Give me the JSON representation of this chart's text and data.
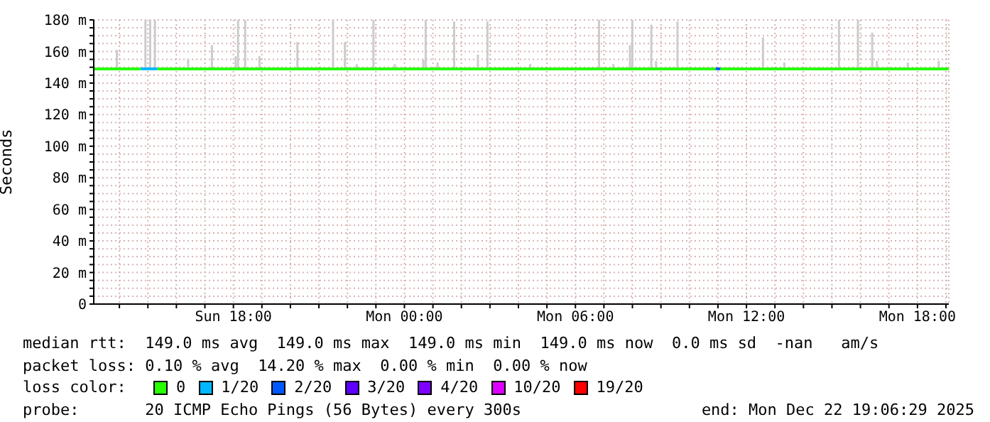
{
  "chart_data": {
    "type": "line",
    "ylabel": "Seconds",
    "legend_title": "loss color:",
    "legend": "bottom",
    "grid": true,
    "marker": "none",
    "line_style": "solid",
    "xlim": [
      "2025-12-21T13:06",
      "2025-12-22T19:06"
    ],
    "xticks": [
      {
        "value": "2025-12-21T14:00",
        "label": null
      },
      {
        "value": "2025-12-21T15:00",
        "label": null
      },
      {
        "value": "2025-12-21T16:00",
        "label": null
      },
      {
        "value": "2025-12-21T17:00",
        "label": null
      },
      {
        "value": "2025-12-21T18:00",
        "label": "Sun 18:00"
      },
      {
        "value": "2025-12-21T19:00",
        "label": null
      },
      {
        "value": "2025-12-21T20:00",
        "label": null
      },
      {
        "value": "2025-12-21T21:00",
        "label": null
      },
      {
        "value": "2025-12-21T22:00",
        "label": null
      },
      {
        "value": "2025-12-21T23:00",
        "label": null
      },
      {
        "value": "2025-12-22T00:00",
        "label": "Mon 00:00"
      },
      {
        "value": "2025-12-22T01:00",
        "label": null
      },
      {
        "value": "2025-12-22T02:00",
        "label": null
      },
      {
        "value": "2025-12-22T03:00",
        "label": null
      },
      {
        "value": "2025-12-22T04:00",
        "label": null
      },
      {
        "value": "2025-12-22T05:00",
        "label": null
      },
      {
        "value": "2025-12-22T06:00",
        "label": "Mon 06:00"
      },
      {
        "value": "2025-12-22T07:00",
        "label": null
      },
      {
        "value": "2025-12-22T08:00",
        "label": null
      },
      {
        "value": "2025-12-22T09:00",
        "label": null
      },
      {
        "value": "2025-12-22T10:00",
        "label": null
      },
      {
        "value": "2025-12-22T11:00",
        "label": null
      },
      {
        "value": "2025-12-22T12:00",
        "label": "Mon 12:00"
      },
      {
        "value": "2025-12-22T13:00",
        "label": null
      },
      {
        "value": "2025-12-22T14:00",
        "label": null
      },
      {
        "value": "2025-12-22T15:00",
        "label": null
      },
      {
        "value": "2025-12-22T16:00",
        "label": null
      },
      {
        "value": "2025-12-22T17:00",
        "label": null
      },
      {
        "value": "2025-12-22T18:00",
        "label": "Mon 18:00"
      },
      {
        "value": "2025-12-22T19:00",
        "label": null
      }
    ],
    "ylim": [
      0,
      180
    ],
    "yticks": [
      0,
      {
        "value": 5,
        "label": null
      },
      {
        "value": 10,
        "label": null
      },
      {
        "value": 15,
        "label": null
      },
      {
        "value": 20,
        "label": "20 m"
      },
      {
        "value": 25,
        "label": null
      },
      {
        "value": 30,
        "label": null
      },
      {
        "value": 35,
        "label": null
      },
      {
        "value": 40,
        "label": "40 m"
      },
      {
        "value": 45,
        "label": null
      },
      {
        "value": 50,
        "label": null
      },
      {
        "value": 55,
        "label": null
      },
      {
        "value": 60,
        "label": "60 m"
      },
      {
        "value": 65,
        "label": null
      },
      {
        "value": 70,
        "label": null
      },
      {
        "value": 75,
        "label": null
      },
      {
        "value": 80,
        "label": "80 m"
      },
      {
        "value": 85,
        "label": null
      },
      {
        "value": 90,
        "label": null
      },
      {
        "value": 95,
        "label": null
      },
      {
        "value": 100,
        "label": "100 m"
      },
      {
        "value": 105,
        "label": null
      },
      {
        "value": 110,
        "label": null
      },
      {
        "value": 115,
        "label": null
      },
      {
        "value": 120,
        "label": "120 m"
      },
      {
        "value": 125,
        "label": null
      },
      {
        "value": 130,
        "label": null
      },
      {
        "value": 135,
        "label": null
      },
      {
        "value": 140,
        "label": "140 m"
      },
      {
        "value": 145,
        "label": null
      },
      {
        "value": 150,
        "label": null
      },
      {
        "value": 155,
        "label": null
      },
      {
        "value": 160,
        "label": "160 m"
      },
      {
        "value": 165,
        "label": null
      },
      {
        "value": 170,
        "label": null
      },
      {
        "value": 175,
        "label": null
      },
      {
        "value": 180,
        "label": "180 m"
      }
    ],
    "series": [
      {
        "type": "bar",
        "color": "#cccccc",
        "x": [
          "2025-12-21T13:55",
          "2025-12-21T14:55",
          "2025-12-21T15:05",
          "2025-12-21T15:15",
          "2025-12-21T16:25",
          "2025-12-21T17:15",
          "2025-12-21T18:05",
          "2025-12-21T18:10",
          "2025-12-21T18:25",
          "2025-12-21T18:55",
          "2025-12-21T20:15",
          "2025-12-21T21:30",
          "2025-12-21T21:55",
          "2025-12-21T22:20",
          "2025-12-21T22:55",
          "2025-12-21T23:40",
          "2025-12-22T00:40",
          "2025-12-22T00:45",
          "2025-12-22T01:10",
          "2025-12-22T01:45",
          "2025-12-22T02:35",
          "2025-12-22T02:55",
          "2025-12-22T04:25",
          "2025-12-22T06:50",
          "2025-12-22T07:20",
          "2025-12-22T07:55",
          "2025-12-22T08:00",
          "2025-12-22T08:40",
          "2025-12-22T08:50",
          "2025-12-22T09:35",
          "2025-12-22T12:35",
          "2025-12-22T13:20",
          "2025-12-22T15:15",
          "2025-12-22T15:55",
          "2025-12-22T16:25",
          "2025-12-22T16:35",
          "2025-12-22T17:40",
          "2025-12-22T18:45"
        ],
        "base": [
          149,
          149,
          149,
          149,
          149,
          149,
          149,
          149,
          149,
          149,
          149,
          149,
          149,
          149,
          149,
          149,
          149,
          149,
          149,
          149,
          149,
          149,
          149,
          149,
          149,
          149,
          149,
          149,
          149,
          149,
          149,
          149,
          149,
          149,
          149,
          149,
          149,
          149
        ],
        "values": [
          12,
          32,
          32,
          32,
          6,
          15,
          8,
          32,
          32,
          8,
          17,
          32,
          17,
          3,
          33,
          3,
          6,
          32,
          4,
          30,
          9,
          30,
          3,
          32,
          3,
          15,
          33,
          28,
          5,
          30,
          20,
          4,
          32,
          32,
          23,
          5,
          4,
          5
        ]
      },
      {
        "name": "0",
        "color": "#26ff00",
        "x": [
          "2025-12-21T13:06",
          "2025-12-21T14:45",
          "2025-12-21T15:00",
          "2025-12-21T15:20",
          "2025-12-22T10:55",
          "2025-12-22T11:00",
          "2025-12-22T11:05",
          "2025-12-22T19:06"
        ],
        "values": [
          149,
          149,
          null,
          149,
          149,
          null,
          149,
          149
        ]
      },
      {
        "name": "1/20",
        "color": "#00b8ff",
        "x": [
          "2025-12-21T14:45",
          "2025-12-21T15:20"
        ],
        "values": [
          149,
          149
        ]
      },
      {
        "name": "2/20",
        "color": "#0059ff",
        "x": [
          "2025-12-22T10:55",
          "2025-12-22T11:05"
        ],
        "values": [
          149,
          149
        ]
      },
      {
        "name": "3/20",
        "color": "#5e00ff"
      },
      {
        "name": "4/20",
        "color": "#7e00ff"
      },
      {
        "name": "10/20",
        "color": "#dd00ff"
      },
      {
        "name": "19/20",
        "color": "#ff0000"
      }
    ],
    "annotations": [
      "median rtt:  149.0 ms avg  149.0 ms max  149.0 ms min  149.0 ms now  0.0 ms sd  -nan   am/s",
      "packet loss: 0.10 % avg  14.20 % max  0.00 % min  0.00 % now",
      "probe:       20 ICMP Echo Pings (56 Bytes) every 300s",
      "end: Mon Dec 22 19:06:29 2025"
    ]
  }
}
